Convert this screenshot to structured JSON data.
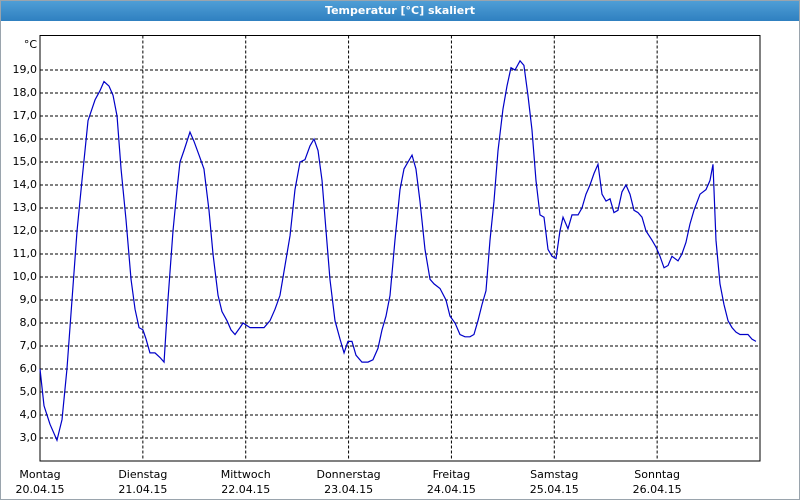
{
  "chart_data": {
    "type": "line",
    "title": "Temperatur [°C] skaliert",
    "ylabel": "°C",
    "xlim": [
      0,
      7
    ],
    "ylim": [
      2,
      20.5
    ],
    "grid": true,
    "xticks": [
      {
        "value": 0,
        "label": "Montag"
      },
      {
        "value": 1,
        "label": "Dienstag"
      },
      {
        "value": 2,
        "label": "Mittwoch"
      },
      {
        "value": 3,
        "label": "Donnerstag"
      },
      {
        "value": 4,
        "label": "Freitag"
      },
      {
        "value": 5,
        "label": "Samstag"
      },
      {
        "value": 6,
        "label": "Sonntag"
      }
    ],
    "xtick_dates": [
      "20.04.15",
      "21.04.15",
      "22.04.15",
      "23.04.15",
      "24.04.15",
      "25.04.15",
      "26.04.15"
    ],
    "yticks": [
      {
        "value": 3,
        "label": "3,0"
      },
      {
        "value": 4,
        "label": "4,0"
      },
      {
        "value": 5,
        "label": "5,0"
      },
      {
        "value": 6,
        "label": "6,0"
      },
      {
        "value": 7,
        "label": "7,0"
      },
      {
        "value": 8,
        "label": "8,0"
      },
      {
        "value": 9,
        "label": "9,0"
      },
      {
        "value": 10,
        "label": "10,0"
      },
      {
        "value": 11,
        "label": "11,0"
      },
      {
        "value": 12,
        "label": "12,0"
      },
      {
        "value": 13,
        "label": "13,0"
      },
      {
        "value": 14,
        "label": "14,0"
      },
      {
        "value": 15,
        "label": "15,0"
      },
      {
        "value": 16,
        "label": "16,0"
      },
      {
        "value": 17,
        "label": "17,0"
      },
      {
        "value": 18,
        "label": "18,0"
      },
      {
        "value": 19,
        "label": "19,0"
      }
    ],
    "color": "#0000c8",
    "x": [
      0,
      0.039,
      0.097,
      0.165,
      0.214,
      0.262,
      0.311,
      0.36,
      0.408,
      0.467,
      0.535,
      0.583,
      0.622,
      0.671,
      0.71,
      0.749,
      0.788,
      0.836,
      0.885,
      0.924,
      0.963,
      1.001,
      1.031,
      1.069,
      1.118,
      1.167,
      1.206,
      1.244,
      1.293,
      1.332,
      1.361,
      1.4,
      1.458,
      1.497,
      1.546,
      1.594,
      1.643,
      1.682,
      1.731,
      1.769,
      1.818,
      1.857,
      1.896,
      1.944,
      1.974,
      2.042,
      2.119,
      2.178,
      2.236,
      2.285,
      2.333,
      2.382,
      2.431,
      2.479,
      2.528,
      2.576,
      2.625,
      2.664,
      2.703,
      2.742,
      2.781,
      2.819,
      2.868,
      2.917,
      2.956,
      2.994,
      3.033,
      3.072,
      3.13,
      3.189,
      3.237,
      3.286,
      3.325,
      3.364,
      3.403,
      3.451,
      3.5,
      3.539,
      3.578,
      3.617,
      3.655,
      3.694,
      3.743,
      3.792,
      3.831,
      3.889,
      3.947,
      3.986,
      4.035,
      4.083,
      4.132,
      4.18,
      4.219,
      4.258,
      4.297,
      4.336,
      4.375,
      4.414,
      4.453,
      4.501,
      4.54,
      4.579,
      4.618,
      4.667,
      4.705,
      4.744,
      4.783,
      4.822,
      4.861,
      4.9,
      4.939,
      4.978,
      5.017,
      5.055,
      5.085,
      5.133,
      5.172,
      5.231,
      5.269,
      5.308,
      5.347,
      5.386,
      5.425,
      5.464,
      5.503,
      5.542,
      5.58,
      5.619,
      5.658,
      5.697,
      5.736,
      5.775,
      5.814,
      5.853,
      5.892,
      5.95,
      5.989,
      6.028,
      6.067,
      6.106,
      6.144,
      6.203,
      6.241,
      6.28,
      6.319,
      6.358,
      6.417,
      6.475,
      6.514,
      6.543,
      6.572,
      6.611,
      6.65,
      6.689,
      6.728,
      6.767,
      6.806,
      6.883,
      6.922,
      6.961
    ],
    "values": [
      6.0,
      4.4,
      3.6,
      2.9,
      3.8,
      6.0,
      9.0,
      12.0,
      14.2,
      16.8,
      17.7,
      18.1,
      18.5,
      18.3,
      17.9,
      17.0,
      14.7,
      12.5,
      9.9,
      8.6,
      7.8,
      7.7,
      7.3,
      6.7,
      6.7,
      6.5,
      6.3,
      9.0,
      12.0,
      13.8,
      15.0,
      15.5,
      16.3,
      15.9,
      15.3,
      14.7,
      12.9,
      11.0,
      9.2,
      8.5,
      8.1,
      7.7,
      7.5,
      7.8,
      8.0,
      7.8,
      7.8,
      7.8,
      8.1,
      8.6,
      9.2,
      10.5,
      11.8,
      13.8,
      15.0,
      15.1,
      15.7,
      16.0,
      15.5,
      14.2,
      12.0,
      9.9,
      8.1,
      7.3,
      6.7,
      7.2,
      7.2,
      6.6,
      6.3,
      6.3,
      6.4,
      6.9,
      7.7,
      8.3,
      9.2,
      11.6,
      13.8,
      14.7,
      15.0,
      15.3,
      14.7,
      13.3,
      11.2,
      9.9,
      9.7,
      9.5,
      9.0,
      8.3,
      8.0,
      7.5,
      7.4,
      7.4,
      7.5,
      8.1,
      8.8,
      9.4,
      11.6,
      13.3,
      15.5,
      17.3,
      18.3,
      19.1,
      19.0,
      19.4,
      19.2,
      17.9,
      16.4,
      14.2,
      12.7,
      12.6,
      11.2,
      10.9,
      10.8,
      12.0,
      12.6,
      12.1,
      12.7,
      12.7,
      13.0,
      13.6,
      14.0,
      14.5,
      14.9,
      13.6,
      13.3,
      13.4,
      12.8,
      12.9,
      13.7,
      14.0,
      13.6,
      12.9,
      12.8,
      12.6,
      12.0,
      11.6,
      11.3,
      10.9,
      10.4,
      10.5,
      10.9,
      10.7,
      11.0,
      11.5,
      12.3,
      12.9,
      13.6,
      13.8,
      14.2,
      14.9,
      11.6,
      9.7,
      8.8,
      8.1,
      7.8,
      7.6,
      7.5,
      7.5,
      7.3,
      7.2
    ]
  }
}
